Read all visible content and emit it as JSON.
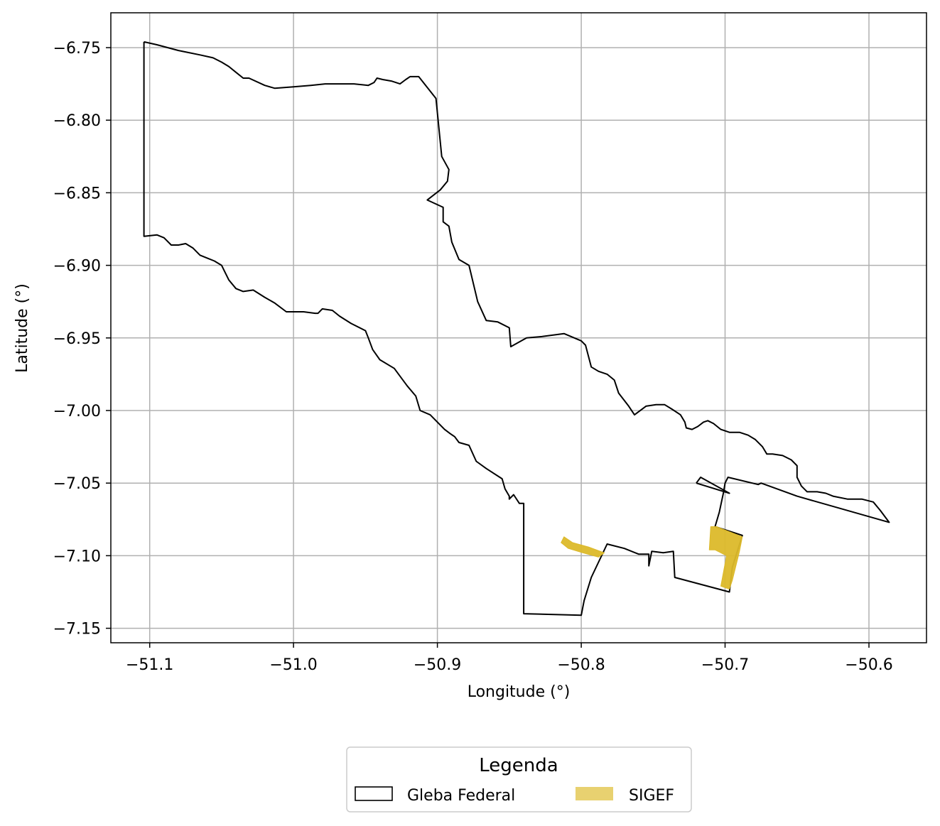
{
  "chart_data": {
    "type": "map",
    "title": "",
    "xlabel": "Longitude (°)",
    "ylabel": "Latitude (°)",
    "xlim": [
      -51.127,
      -50.56
    ],
    "ylim": [
      -7.16,
      -6.726
    ],
    "grid": true,
    "x_ticks": [
      -51.1,
      -51.0,
      -50.9,
      -50.8,
      -50.7,
      -50.6
    ],
    "x_tick_labels": [
      "−51.1",
      "−51.0",
      "−50.9",
      "−50.8",
      "−50.7",
      "−50.6"
    ],
    "y_ticks": [
      -6.75,
      -6.8,
      -6.85,
      -6.9,
      -6.95,
      -7.0,
      -7.05,
      -7.1,
      -7.15
    ],
    "y_tick_labels": [
      "−6.75",
      "−6.80",
      "−6.85",
      "−6.90",
      "−6.95",
      "−7.00",
      "−7.05",
      "−7.10",
      "−7.15"
    ],
    "legend": {
      "title": "Legenda",
      "position": "bottom-center",
      "entries": [
        {
          "label": "Gleba Federal",
          "style": "outline",
          "color": "#000000"
        },
        {
          "label": "SIGEF",
          "style": "fill",
          "color": "#e8d170"
        }
      ]
    },
    "layers": [
      {
        "name": "Gleba Federal",
        "style": "outline",
        "color": "#000000",
        "coordinates": [
          [
            -51.104,
            -6.746
          ],
          [
            -51.095,
            -6.748
          ],
          [
            -51.08,
            -6.752
          ],
          [
            -51.065,
            -6.755
          ],
          [
            -51.056,
            -6.757
          ],
          [
            -51.05,
            -6.76
          ],
          [
            -51.045,
            -6.763
          ],
          [
            -51.04,
            -6.767
          ],
          [
            -51.035,
            -6.771
          ],
          [
            -51.031,
            -6.771
          ],
          [
            -51.02,
            -6.776
          ],
          [
            -51.013,
            -6.778
          ],
          [
            -51.0,
            -6.777
          ],
          [
            -50.988,
            -6.776
          ],
          [
            -50.978,
            -6.775
          ],
          [
            -50.958,
            -6.775
          ],
          [
            -50.948,
            -6.776
          ],
          [
            -50.944,
            -6.774
          ],
          [
            -50.942,
            -6.771
          ],
          [
            -50.938,
            -6.772
          ],
          [
            -50.932,
            -6.773
          ],
          [
            -50.926,
            -6.775
          ],
          [
            -50.922,
            -6.772
          ],
          [
            -50.919,
            -6.77
          ],
          [
            -50.913,
            -6.77
          ],
          [
            -50.901,
            -6.785
          ],
          [
            -50.897,
            -6.825
          ],
          [
            -50.892,
            -6.834
          ],
          [
            -50.893,
            -6.842
          ],
          [
            -50.898,
            -6.848
          ],
          [
            -50.907,
            -6.855
          ],
          [
            -50.896,
            -6.86
          ],
          [
            -50.896,
            -6.87
          ],
          [
            -50.892,
            -6.873
          ],
          [
            -50.89,
            -6.884
          ],
          [
            -50.885,
            -6.896
          ],
          [
            -50.878,
            -6.9
          ],
          [
            -50.872,
            -6.925
          ],
          [
            -50.866,
            -6.938
          ],
          [
            -50.858,
            -6.939
          ],
          [
            -50.85,
            -6.943
          ],
          [
            -50.849,
            -6.956
          ],
          [
            -50.838,
            -6.95
          ],
          [
            -50.827,
            -6.949
          ],
          [
            -50.812,
            -6.947
          ],
          [
            -50.8,
            -6.952
          ],
          [
            -50.797,
            -6.955
          ],
          [
            -50.793,
            -6.97
          ],
          [
            -50.788,
            -6.973
          ],
          [
            -50.782,
            -6.975
          ],
          [
            -50.777,
            -6.979
          ],
          [
            -50.774,
            -6.988
          ],
          [
            -50.767,
            -6.997
          ],
          [
            -50.763,
            -7.003
          ],
          [
            -50.755,
            -6.997
          ],
          [
            -50.748,
            -6.996
          ],
          [
            -50.742,
            -6.996
          ],
          [
            -50.737,
            -6.999
          ],
          [
            -50.731,
            -7.003
          ],
          [
            -50.728,
            -7.008
          ],
          [
            -50.727,
            -7.012
          ],
          [
            -50.723,
            -7.013
          ],
          [
            -50.719,
            -7.011
          ],
          [
            -50.715,
            -7.008
          ],
          [
            -50.712,
            -7.007
          ],
          [
            -50.708,
            -7.009
          ],
          [
            -50.703,
            -7.013
          ],
          [
            -50.697,
            -7.015
          ],
          [
            -50.69,
            -7.015
          ],
          [
            -50.684,
            -7.017
          ],
          [
            -50.679,
            -7.02
          ],
          [
            -50.674,
            -7.025
          ],
          [
            -50.671,
            -7.03
          ],
          [
            -50.667,
            -7.03
          ],
          [
            -50.66,
            -7.031
          ],
          [
            -50.654,
            -7.034
          ],
          [
            -50.65,
            -7.038
          ],
          [
            -50.65,
            -7.046
          ],
          [
            -50.647,
            -7.052
          ],
          [
            -50.643,
            -7.056
          ],
          [
            -50.636,
            -7.056
          ],
          [
            -50.63,
            -7.057
          ],
          [
            -50.625,
            -7.059
          ],
          [
            -50.615,
            -7.061
          ],
          [
            -50.605,
            -7.061
          ],
          [
            -50.597,
            -7.063
          ],
          [
            -50.592,
            -7.069
          ],
          [
            -50.586,
            -7.077
          ],
          [
            -50.65,
            -7.059
          ],
          [
            -50.675,
            -7.05
          ],
          [
            -50.677,
            -7.051
          ],
          [
            -50.698,
            -7.046
          ],
          [
            -50.7,
            -7.05
          ],
          [
            -50.701,
            -7.056
          ],
          [
            -50.704,
            -7.07
          ],
          [
            -50.707,
            -7.08
          ],
          [
            -50.688,
            -7.086
          ],
          [
            -50.695,
            -7.108
          ],
          [
            -50.697,
            -7.125
          ],
          [
            -50.735,
            -7.115
          ],
          [
            -50.736,
            -7.097
          ],
          [
            -50.743,
            -7.098
          ],
          [
            -50.751,
            -7.097
          ],
          [
            -50.753,
            -7.107
          ],
          [
            -50.753,
            -7.099
          ],
          [
            -50.76,
            -7.099
          ],
          [
            -50.77,
            -7.095
          ],
          [
            -50.782,
            -7.092
          ],
          [
            -50.793,
            -7.115
          ],
          [
            -50.798,
            -7.131
          ],
          [
            -50.8,
            -7.141
          ],
          [
            -50.84,
            -7.14
          ],
          [
            -50.84,
            -7.064
          ],
          [
            -50.843,
            -7.064
          ],
          [
            -50.847,
            -7.058
          ],
          [
            -50.85,
            -7.061
          ],
          [
            -50.85,
            -7.059
          ],
          [
            -50.853,
            -7.054
          ],
          [
            -50.855,
            -7.047
          ],
          [
            -50.866,
            -7.04
          ],
          [
            -50.873,
            -7.035
          ],
          [
            -50.878,
            -7.024
          ],
          [
            -50.885,
            -7.022
          ],
          [
            -50.888,
            -7.018
          ],
          [
            -50.891,
            -7.016
          ],
          [
            -50.895,
            -7.013
          ],
          [
            -50.9,
            -7.008
          ],
          [
            -50.905,
            -7.003
          ],
          [
            -50.912,
            -7.0
          ],
          [
            -50.915,
            -6.99
          ],
          [
            -50.921,
            -6.983
          ],
          [
            -50.93,
            -6.971
          ],
          [
            -50.94,
            -6.965
          ],
          [
            -50.945,
            -6.958
          ],
          [
            -50.948,
            -6.95
          ],
          [
            -50.95,
            -6.945
          ],
          [
            -50.96,
            -6.94
          ],
          [
            -50.968,
            -6.935
          ],
          [
            -50.973,
            -6.931
          ],
          [
            -50.98,
            -6.93
          ],
          [
            -50.983,
            -6.933
          ],
          [
            -50.985,
            -6.933
          ],
          [
            -50.993,
            -6.932
          ],
          [
            -51.005,
            -6.932
          ],
          [
            -51.013,
            -6.926
          ],
          [
            -51.02,
            -6.922
          ],
          [
            -51.028,
            -6.917
          ],
          [
            -51.035,
            -6.918
          ],
          [
            -51.04,
            -6.916
          ],
          [
            -51.045,
            -6.91
          ],
          [
            -51.05,
            -6.9
          ],
          [
            -51.055,
            -6.897
          ],
          [
            -51.06,
            -6.895
          ],
          [
            -51.065,
            -6.893
          ],
          [
            -51.07,
            -6.888
          ],
          [
            -51.075,
            -6.885
          ],
          [
            -51.08,
            -6.886
          ],
          [
            -51.085,
            -6.886
          ],
          [
            -51.09,
            -6.881
          ],
          [
            -51.095,
            -6.879
          ],
          [
            -51.104,
            -6.88
          ],
          [
            -51.104,
            -6.746
          ]
        ]
      },
      {
        "name": "Gleba Federal",
        "style": "outline",
        "color": "#000000",
        "coordinates": [
          [
            -50.72,
            -7.05
          ],
          [
            -50.717,
            -7.046
          ],
          [
            -50.697,
            -7.057
          ],
          [
            -50.72,
            -7.05
          ]
        ]
      },
      {
        "name": "SIGEF",
        "style": "fill",
        "color": "#dcb92a",
        "coordinates": [
          [
            -50.814,
            -7.091
          ],
          [
            -50.812,
            -7.087
          ],
          [
            -50.806,
            -7.091
          ],
          [
            -50.795,
            -7.094
          ],
          [
            -50.784,
            -7.098
          ],
          [
            -50.788,
            -7.101
          ],
          [
            -50.799,
            -7.098
          ],
          [
            -50.809,
            -7.095
          ],
          [
            -50.814,
            -7.091
          ]
        ]
      },
      {
        "name": "SIGEF",
        "style": "fill",
        "color": "#dcb92a",
        "coordinates": [
          [
            -50.71,
            -7.08
          ],
          [
            -50.706,
            -7.08
          ],
          [
            -50.688,
            -7.087
          ],
          [
            -50.69,
            -7.097
          ],
          [
            -50.695,
            -7.117
          ],
          [
            -50.697,
            -7.123
          ],
          [
            -50.703,
            -7.121
          ],
          [
            -50.699,
            -7.1
          ],
          [
            -50.707,
            -7.096
          ],
          [
            -50.711,
            -7.096
          ],
          [
            -50.71,
            -7.08
          ]
        ]
      }
    ]
  }
}
